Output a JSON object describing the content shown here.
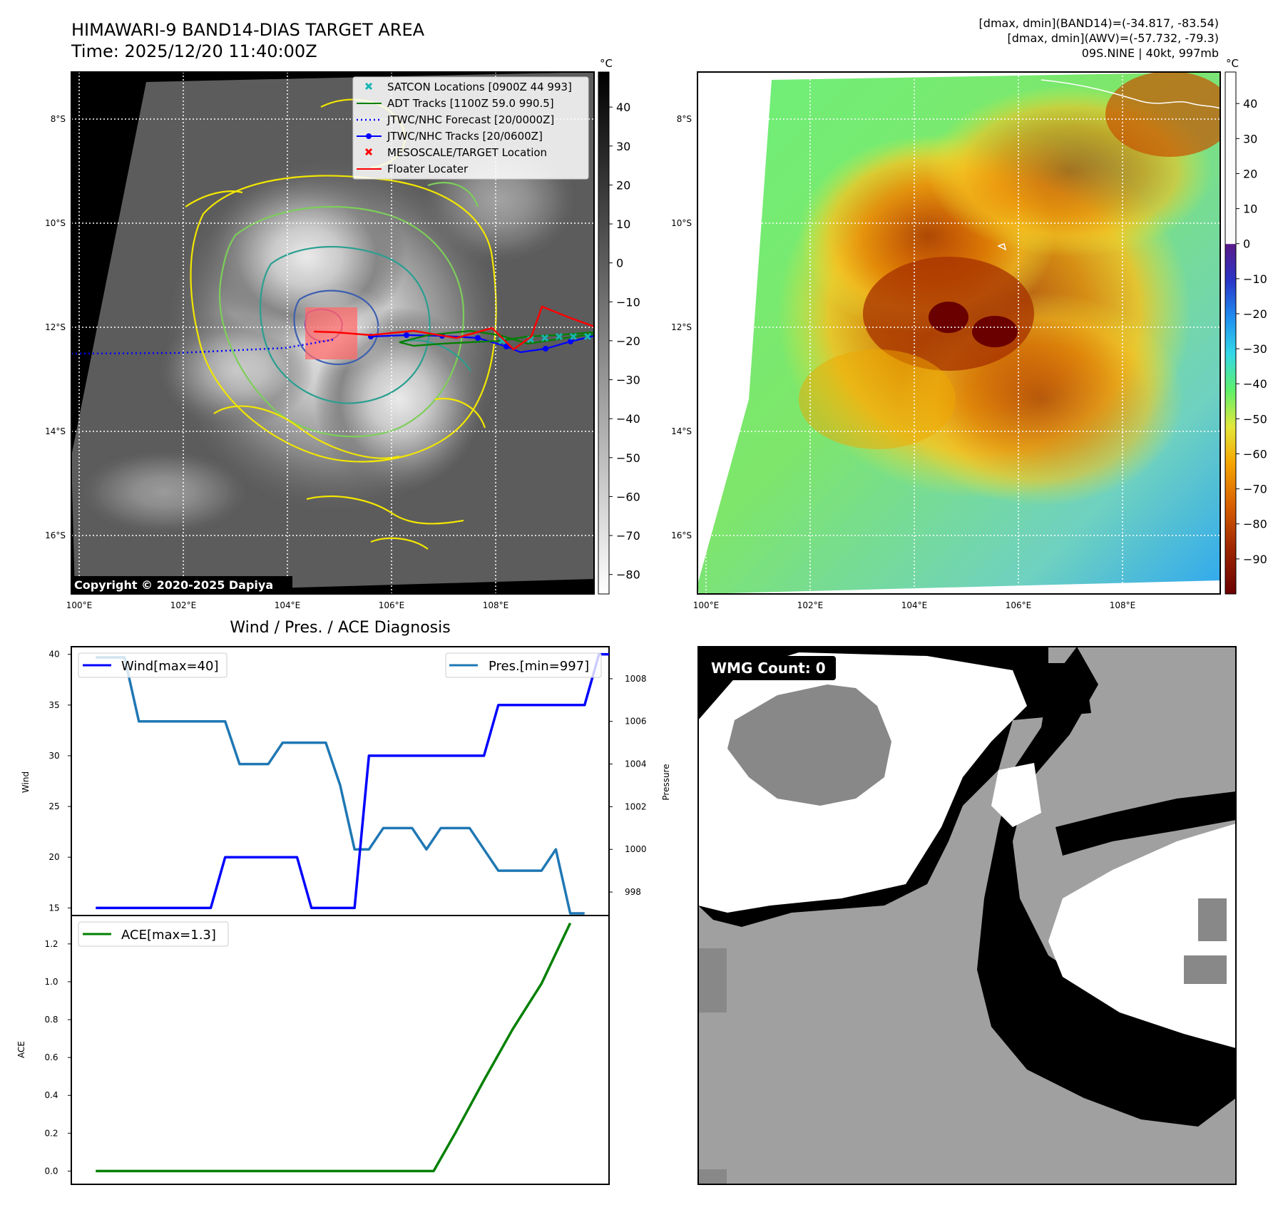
{
  "title": {
    "line1": "HIMAWARI-9 BAND14-DIAS TARGET AREA",
    "line2": "Time: 2025/12/20 11:40:00Z"
  },
  "info": {
    "line1": "[dmax, dmin](BAND14)=(-34.817, -83.54)",
    "line2": "[dmax, dmin](AWV)=(-57.732, -79.3)",
    "line3": "09S.NINE | 40kt, 997mb"
  },
  "copyright": "Copyright © 2020-2025 Dapiya",
  "map_axes": {
    "lon_ticks": [
      "100°E",
      "102°E",
      "104°E",
      "106°E",
      "108°E"
    ],
    "lat_ticks": [
      "8°S",
      "10°S",
      "12°S",
      "14°S",
      "16°S"
    ]
  },
  "left_colorbar": {
    "unit": "°C",
    "ticks": [
      "40",
      "30",
      "20",
      "10",
      "0",
      "−10",
      "−20",
      "−30",
      "−40",
      "−50",
      "−60",
      "−70",
      "−80"
    ],
    "range": [
      -85,
      49
    ]
  },
  "right_colorbar": {
    "unit": "°C",
    "ticks": [
      "40",
      "30",
      "20",
      "10",
      "0",
      "−10",
      "−20",
      "−30",
      "−40",
      "−50",
      "−60",
      "−70",
      "−80",
      "−90"
    ],
    "range": [
      -100,
      49
    ]
  },
  "legend": [
    {
      "label": "SATCON Locations [0900Z 44 993]",
      "color": "#17b5b5",
      "style": "x"
    },
    {
      "label": "ADT Tracks [1100Z 59.0 990.5]",
      "color": "#008000",
      "style": "line"
    },
    {
      "label": "JTWC/NHC Forecast [20/0000Z]",
      "color": "#0000ff",
      "style": "dotted"
    },
    {
      "label": "JTWC/NHC Tracks [20/0600Z]",
      "color": "#0000ff",
      "style": "line-dot"
    },
    {
      "label": "MESOSCALE/TARGET Location",
      "color": "#ff0000",
      "style": "x"
    },
    {
      "label": "Floater Locater",
      "color": "#ff0000",
      "style": "line"
    }
  ],
  "wmg": {
    "label": "WMG Count: 0"
  },
  "colors": {
    "wind": "#0000ff",
    "pressure": "#1f77b4",
    "ace": "#008000",
    "wmg_black": "#000000",
    "wmg_white": "#ffffff",
    "wmg_light": "#a0a0a0",
    "wmg_dark": "#888888"
  },
  "chart_data": [
    {
      "type": "line",
      "title": "Wind / Pres. / ACE Diagnosis",
      "ylabel": "Wind",
      "y2label": "Pressure",
      "ylim": [
        14.25,
        40.75
      ],
      "y2lim": [
        996.9,
        1009.5
      ],
      "yticks": [
        15,
        20,
        25,
        30,
        35,
        40
      ],
      "y2ticks": [
        998,
        1000,
        1002,
        1004,
        1006,
        1008
      ],
      "series": [
        {
          "name": "Wind[max=40]",
          "axis": "left",
          "values": [
            [
              0,
              15
            ],
            [
              8,
              15
            ],
            [
              9,
              20
            ],
            [
              14,
              20
            ],
            [
              15,
              15
            ],
            [
              18,
              15
            ],
            [
              19,
              30
            ],
            [
              27,
              30
            ],
            [
              28,
              35
            ],
            [
              34,
              35
            ],
            [
              35,
              40
            ],
            [
              36,
              40
            ]
          ]
        },
        {
          "name": "Pres.[min=997]",
          "axis": "right",
          "values": [
            [
              0,
              1009
            ],
            [
              2,
              1009
            ],
            [
              3,
              1006
            ],
            [
              9,
              1006
            ],
            [
              10,
              1004
            ],
            [
              12,
              1004
            ],
            [
              13,
              1005
            ],
            [
              16,
              1005
            ],
            [
              17,
              1003
            ],
            [
              18,
              1000
            ],
            [
              19,
              1000
            ],
            [
              20,
              1001
            ],
            [
              22,
              1001
            ],
            [
              23,
              1000
            ],
            [
              24,
              1001
            ],
            [
              26,
              1001
            ],
            [
              28,
              999
            ],
            [
              31,
              999
            ],
            [
              32,
              1000
            ],
            [
              33,
              997
            ],
            [
              34,
              997
            ]
          ]
        }
      ]
    },
    {
      "type": "line",
      "ylabel": "ACE",
      "ylim": [
        -0.07,
        1.35
      ],
      "yticks": [
        0.0,
        0.2,
        0.4,
        0.6,
        0.8,
        1.0,
        1.2
      ],
      "ytick_labels": [
        "0.0",
        "0.2",
        "0.4",
        "0.6",
        "0.8",
        "1.0",
        "1.2"
      ],
      "series": [
        {
          "name": "ACE[max=1.3]",
          "values": [
            [
              0,
              0
            ],
            [
              23.5,
              0
            ],
            [
              25,
              0.2
            ],
            [
              27,
              0.48
            ],
            [
              29,
              0.75
            ],
            [
              31,
              0.99
            ],
            [
              33,
              1.31
            ]
          ]
        }
      ]
    }
  ]
}
